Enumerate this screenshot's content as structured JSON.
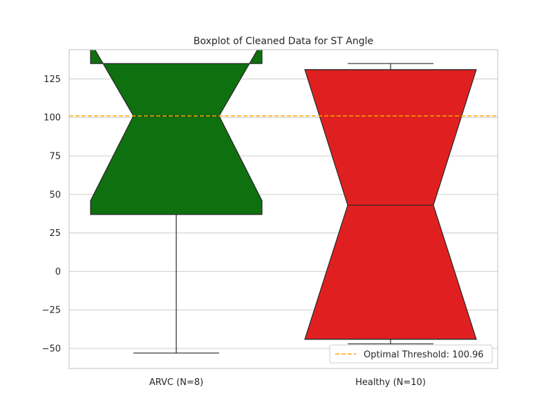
{
  "chart_data": {
    "type": "boxplot",
    "title": "Boxplot of Cleaned Data for ST Angle",
    "xlabel": "",
    "ylabel": "",
    "ylim": [
      -63,
      144
    ],
    "yticks": [
      -50,
      -25,
      0,
      25,
      50,
      75,
      100,
      125
    ],
    "ytick_labels": [
      "−50",
      "−25",
      "0",
      "25",
      "50",
      "75",
      "100",
      "125"
    ],
    "grid": "horizontal",
    "categories": [
      "ARVC (N=8)",
      "Healthy (N=10)"
    ],
    "boxes": [
      {
        "category": "ARVC (N=8)",
        "color": "#0f700f",
        "whisker_low": -53,
        "q1": 37,
        "notch_low": 46,
        "median": 101,
        "notch_high": 149,
        "q3": 135,
        "whisker_high": 135
      },
      {
        "category": "Healthy (N=10)",
        "color": "#e02020",
        "whisker_low": -47,
        "q1": -44,
        "notch_low": -44,
        "median": 43,
        "notch_high": 131,
        "q3": 131,
        "whisker_high": 135
      }
    ],
    "threshold": {
      "value": 100.96,
      "color": "#ffa500",
      "label": "Optimal Threshold: 100.96"
    },
    "legend": {
      "placement": "lower-right",
      "entries": [
        "Optimal Threshold: 100.96"
      ]
    }
  }
}
